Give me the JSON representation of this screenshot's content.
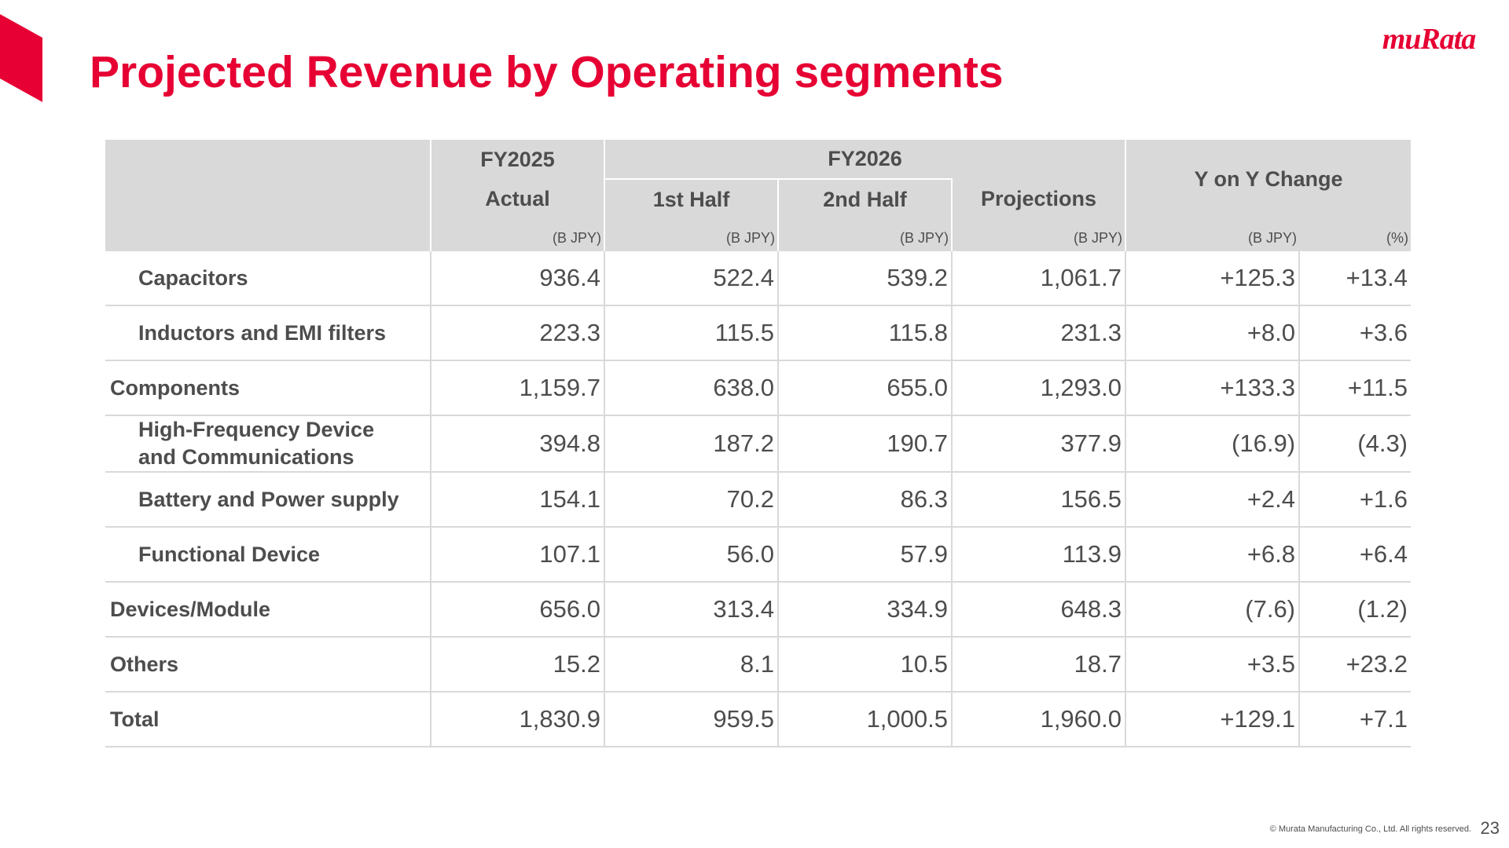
{
  "page": {
    "title": "Projected Revenue by Operating segments",
    "logo_text": "muRata",
    "copyright": "© Murata Manufacturing Co., Ltd. All rights reserved.",
    "page_number": "23",
    "accent_color": "#e60033",
    "header_fill_color": "#d9d9d9"
  },
  "table": {
    "header": {
      "fy2025": "FY2025",
      "actual": "Actual",
      "fy2026": "FY2026",
      "first_half": "1st Half",
      "second_half": "2nd Half",
      "projections": "Projections",
      "yoy_change": "Y on Y Change",
      "units": [
        "(B JPY)",
        "(B JPY)",
        "(B JPY)",
        "(B JPY)",
        "(B JPY)",
        "(%)"
      ]
    },
    "rows": [
      {
        "label": "Capacitors",
        "indent": true,
        "values": [
          "936.4",
          "522.4",
          "539.2",
          "1,061.7",
          "+125.3",
          "+13.4"
        ]
      },
      {
        "label": "Inductors and EMI filters",
        "indent": true,
        "values": [
          "223.3",
          "115.5",
          "115.8",
          "231.3",
          "+8.0",
          "+3.6"
        ]
      },
      {
        "label": "Components",
        "indent": false,
        "values": [
          "1,159.7",
          "638.0",
          "655.0",
          "1,293.0",
          "+133.3",
          "+11.5"
        ]
      },
      {
        "label": "High-Frequency Device and Communications",
        "label_lines": [
          "High-Frequency Device",
          "and Communications"
        ],
        "indent": true,
        "values": [
          "394.8",
          "187.2",
          "190.7",
          "377.9",
          "(16.9)",
          "(4.3)"
        ]
      },
      {
        "label": "Battery and Power supply",
        "indent": true,
        "values": [
          "154.1",
          "70.2",
          "86.3",
          "156.5",
          "+2.4",
          "+1.6"
        ]
      },
      {
        "label": "Functional Device",
        "indent": true,
        "values": [
          "107.1",
          "56.0",
          "57.9",
          "113.9",
          "+6.8",
          "+6.4"
        ]
      },
      {
        "label": "Devices/Module",
        "indent": false,
        "values": [
          "656.0",
          "313.4",
          "334.9",
          "648.3",
          "(7.6)",
          "(1.2)"
        ]
      },
      {
        "label": "Others",
        "indent": false,
        "values": [
          "15.2",
          "8.1",
          "10.5",
          "18.7",
          "+3.5",
          "+23.2"
        ]
      },
      {
        "label": "Total",
        "indent": false,
        "values": [
          "1,830.9",
          "959.5",
          "1,000.5",
          "1,960.0",
          "+129.1",
          "+7.1"
        ]
      }
    ]
  }
}
